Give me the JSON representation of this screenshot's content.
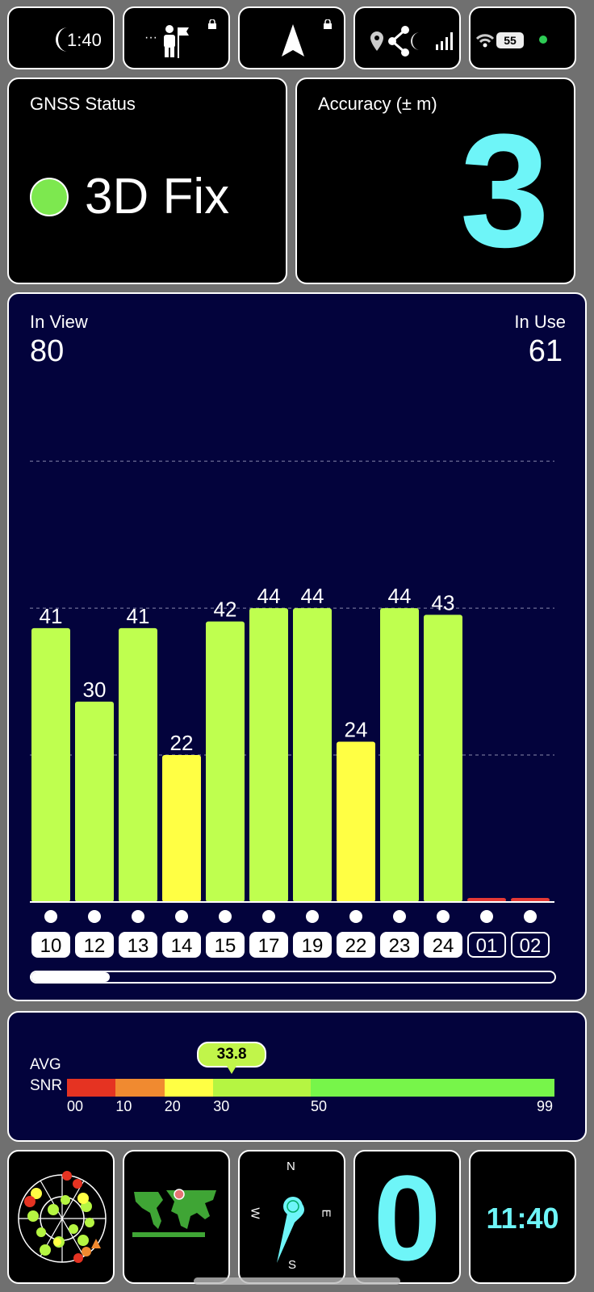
{
  "statusbar": {
    "time": "1:40",
    "battery": "55",
    "icons": [
      "moon-icon",
      "more-dots-icon",
      "person-flag-icon",
      "lock-icon",
      "navigation-arrow-icon",
      "lock-icon",
      "location-pin-icon",
      "share-icon",
      "signal-icon",
      "wifi-icon",
      "battery-icon",
      "green-dot-icon"
    ]
  },
  "gnss": {
    "title": "GNSS Status",
    "status": "3D Fix",
    "status_color": "#7de84f"
  },
  "accuracy": {
    "title": "Accuracy (± m)",
    "value": "3",
    "color": "#6ef5f8"
  },
  "counts": {
    "in_view_label": "In View",
    "in_view": "80",
    "in_use_label": "In Use",
    "in_use": "61"
  },
  "chart_data": {
    "type": "bar",
    "categories": [
      "10",
      "12",
      "13",
      "14",
      "15",
      "17",
      "19",
      "22",
      "23",
      "24",
      "01",
      "02"
    ],
    "values": [
      41,
      30,
      41,
      22,
      42,
      44,
      44,
      24,
      44,
      43,
      0,
      0
    ],
    "value_labels": [
      "41",
      "30",
      "41",
      "22",
      "42",
      "44",
      "44",
      "24",
      "44",
      "43",
      "",
      ""
    ],
    "in_use": [
      true,
      true,
      true,
      true,
      true,
      true,
      true,
      true,
      true,
      true,
      false,
      false
    ],
    "colors": {
      "strong": "#bfff4f",
      "medium": "#ffff44",
      "weak": "#e53935"
    },
    "gridlines": [
      22,
      44,
      66
    ],
    "ylim": [
      0,
      72
    ],
    "grid": true,
    "scroll_position": 0.15
  },
  "snr": {
    "label_line1": "AVG",
    "label_line2": "SNR",
    "value": "33.8",
    "value_num": 33.8,
    "segments": [
      {
        "from": 0,
        "to": 10,
        "color": "#e53322"
      },
      {
        "from": 10,
        "to": 20,
        "color": "#f08a30"
      },
      {
        "from": 20,
        "to": 30,
        "color": "#ffff44"
      },
      {
        "from": 30,
        "to": 50,
        "color": "#b5f542"
      },
      {
        "from": 50,
        "to": 99,
        "color": "#77f54a"
      }
    ],
    "ticks": [
      "00",
      "10",
      "20",
      "30",
      "50",
      "99"
    ]
  },
  "bottom": {
    "compass": {
      "n": "N",
      "e": "E",
      "s": "S",
      "w": "W"
    },
    "speed": "0",
    "clock": "11:40"
  }
}
